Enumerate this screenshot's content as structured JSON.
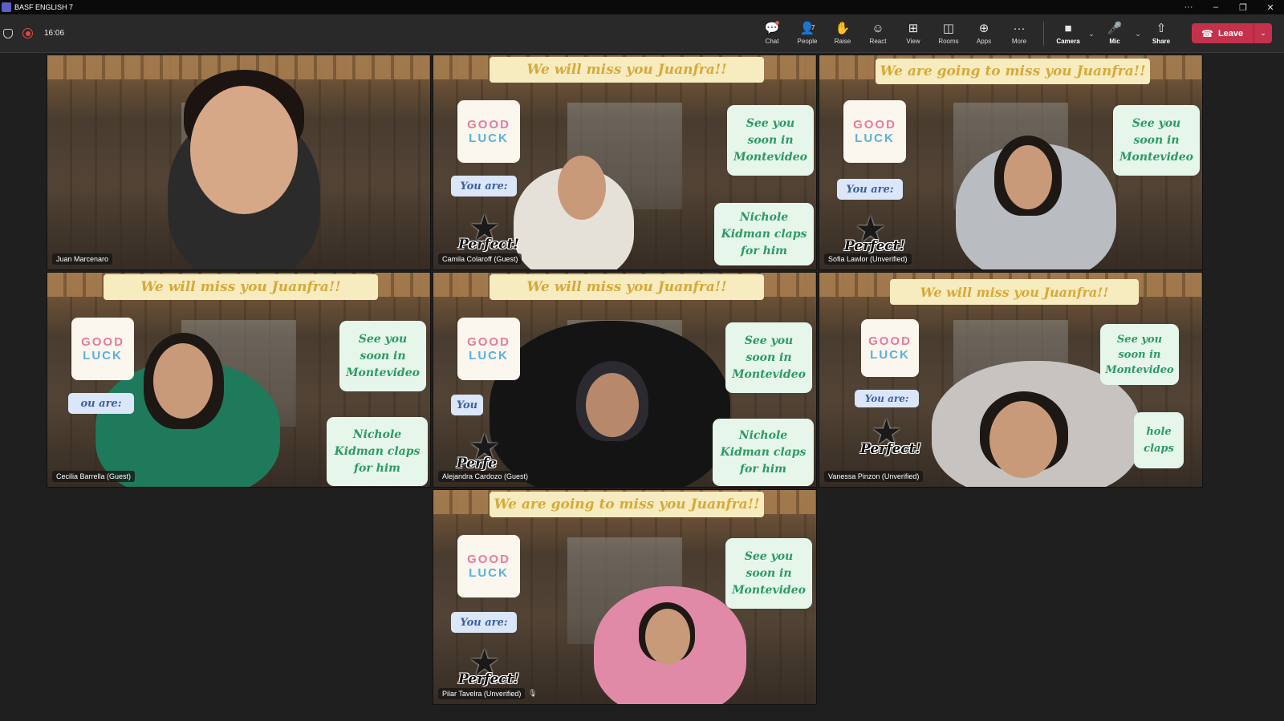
{
  "window": {
    "title": "BASF ENGLISH 7",
    "controls": [
      "···",
      "–",
      "❐",
      "✕"
    ]
  },
  "toolbar": {
    "timer": "16:06",
    "people_count": "7",
    "items": [
      {
        "key": "chat",
        "label": "Chat",
        "icon": "chat-icon"
      },
      {
        "key": "people",
        "label": "People",
        "icon": "people-icon"
      },
      {
        "key": "raise",
        "label": "Raise",
        "icon": "hand-icon"
      },
      {
        "key": "react",
        "label": "React",
        "icon": "smile-icon"
      },
      {
        "key": "view",
        "label": "View",
        "icon": "grid-icon"
      },
      {
        "key": "rooms",
        "label": "Rooms",
        "icon": "rooms-icon"
      },
      {
        "key": "apps",
        "label": "Apps",
        "icon": "apps-icon"
      },
      {
        "key": "more",
        "label": "More",
        "icon": "more-icon"
      }
    ],
    "camera_label": "Camera",
    "mic_label": "Mic",
    "share_label": "Share",
    "leave_label": "Leave"
  },
  "overlay_text": {
    "banner_will": "We will miss you Juanfra!!",
    "banner_going": "We are going to miss you Juanfra!!",
    "luck_line1": "GOOD",
    "luck_line2": "LUCK",
    "you_are": "You are:",
    "perfect": "Perfect!",
    "see_you": "See you soon in Montevideo",
    "nichole": "Nichole Kidman claps for him",
    "partial_you": "You",
    "partial_you_are": "ou are:",
    "partial_perfect": "Perfe",
    "partial_nichole": "hole claps"
  },
  "participants": [
    {
      "name": "Juan Marcenaro"
    },
    {
      "name": "Camila Colaroff (Guest)"
    },
    {
      "name": "Sofia Lawlor (Unverified)"
    },
    {
      "name": "Cecilia Barrella (Guest)"
    },
    {
      "name": "Alejandra Cardozo (Guest)"
    },
    {
      "name": "Vanessa Pinzon (Unverified)"
    },
    {
      "name": "Pilar Tavelra (Unverified)"
    }
  ]
}
